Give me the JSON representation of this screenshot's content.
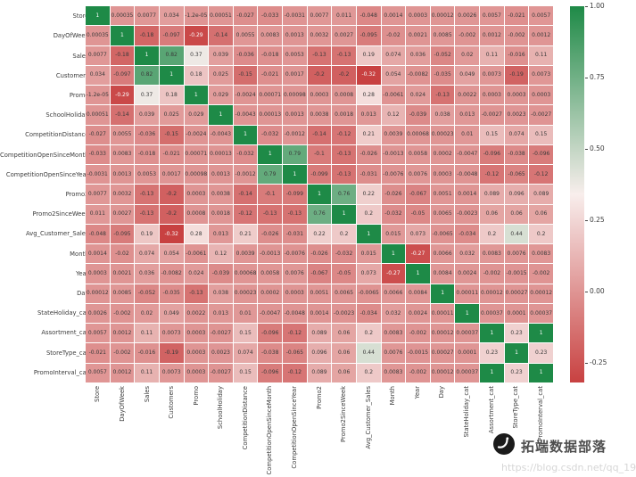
{
  "watermark": {
    "brand": "拓端数据部落",
    "url": "https://blog.csdn.net/qq_19000291"
  },
  "chart_data": {
    "type": "heatmap",
    "title": "",
    "subtitle": "",
    "annotation_format": ".2g",
    "legend_position": "right",
    "grid": false,
    "labels": [
      "Store",
      "DayOfWeek",
      "Sales",
      "Customers",
      "Promo",
      "SchoolHoliday",
      "CompetitionDistance",
      "CompetitionOpenSinceMonth",
      "CompetitionOpenSinceYear",
      "Promo2",
      "Promo2SinceWeek",
      "Avg_Customer_Sales",
      "Month",
      "Year",
      "Day",
      "StateHoliday_cat",
      "Assortment_cat",
      "StoreType_cat",
      "PromoInterval_cat"
    ],
    "matrix": [
      [
        1,
        0.00035,
        0.0077,
        0.034,
        -1.2e-05,
        0.00051,
        -0.027,
        -0.033,
        -0.0031,
        0.0077,
        0.011,
        -0.048,
        0.0014,
        0.0003,
        0.00012,
        0.0026,
        0.0057,
        -0.021,
        0.0057
      ],
      [
        0.00035,
        1,
        -0.18,
        -0.097,
        -0.29,
        -0.14,
        0.0055,
        0.0083,
        0.0013,
        0.0032,
        0.0027,
        -0.095,
        -0.02,
        0.0021,
        0.0085,
        -0.002,
        0.0012,
        -0.002,
        0.0012
      ],
      [
        0.0077,
        -0.18,
        1,
        0.82,
        0.37,
        0.039,
        -0.036,
        -0.018,
        0.0053,
        -0.13,
        -0.13,
        0.19,
        0.074,
        0.036,
        -0.052,
        0.02,
        0.11,
        -0.016,
        0.11
      ],
      [
        0.034,
        -0.097,
        0.82,
        1,
        0.18,
        0.025,
        -0.15,
        -0.021,
        0.0017,
        -0.2,
        -0.2,
        -0.32,
        0.054,
        -0.0082,
        -0.035,
        0.049,
        0.0073,
        -0.19,
        0.0073
      ],
      [
        -1.2e-05,
        -0.29,
        0.37,
        0.18,
        1,
        0.029,
        -0.0024,
        0.00071,
        0.00098,
        0.0003,
        0.0008,
        0.28,
        -0.0061,
        0.024,
        -0.13,
        0.0022,
        0.0003,
        0.0003,
        0.0003
      ],
      [
        0.00051,
        -0.14,
        0.039,
        0.025,
        0.029,
        1,
        -0.0043,
        0.00013,
        0.0013,
        0.0038,
        0.0018,
        0.013,
        0.12,
        -0.039,
        0.038,
        0.013,
        -0.0027,
        0.0023,
        -0.0027
      ],
      [
        -0.027,
        0.0055,
        -0.036,
        -0.15,
        -0.0024,
        -0.0043,
        1,
        -0.032,
        -0.0012,
        -0.14,
        -0.12,
        0.21,
        0.0039,
        0.00068,
        0.00023,
        0.01,
        0.15,
        0.074,
        0.15
      ],
      [
        -0.033,
        0.0083,
        -0.018,
        -0.021,
        0.00071,
        0.00013,
        -0.032,
        1,
        0.79,
        -0.1,
        -0.13,
        -0.026,
        -0.0013,
        0.0058,
        0.0002,
        -0.0047,
        -0.096,
        -0.038,
        -0.096
      ],
      [
        -0.0031,
        0.0013,
        0.0053,
        0.0017,
        0.00098,
        0.0013,
        -0.0012,
        0.79,
        1,
        -0.099,
        -0.13,
        -0.031,
        -0.0076,
        0.0076,
        0.0003,
        -0.0048,
        -0.12,
        -0.065,
        -0.12
      ],
      [
        0.0077,
        0.0032,
        -0.13,
        -0.2,
        0.0003,
        0.0038,
        -0.14,
        -0.1,
        -0.099,
        1,
        0.76,
        0.22,
        -0.026,
        -0.067,
        0.0051,
        0.0014,
        0.089,
        0.096,
        0.089
      ],
      [
        0.011,
        0.0027,
        -0.13,
        -0.2,
        0.0008,
        0.0018,
        -0.12,
        -0.13,
        -0.13,
        0.76,
        1,
        0.2,
        -0.032,
        -0.05,
        0.0065,
        -0.0023,
        0.06,
        0.06,
        0.06
      ],
      [
        -0.048,
        -0.095,
        0.19,
        -0.32,
        0.28,
        0.013,
        0.21,
        -0.026,
        -0.031,
        0.22,
        0.2,
        1,
        0.015,
        0.073,
        -0.0065,
        -0.034,
        0.2,
        0.44,
        0.2
      ],
      [
        0.0014,
        -0.02,
        0.074,
        0.054,
        -0.0061,
        0.12,
        0.0039,
        -0.0013,
        -0.0076,
        -0.026,
        -0.032,
        0.015,
        1,
        -0.27,
        0.0066,
        0.032,
        0.0083,
        0.0076,
        0.0083
      ],
      [
        0.0003,
        0.0021,
        0.036,
        -0.0082,
        0.024,
        -0.039,
        0.00068,
        0.0058,
        0.0076,
        -0.067,
        -0.05,
        0.073,
        -0.27,
        1,
        0.0084,
        0.0024,
        -0.002,
        -0.0015,
        -0.002
      ],
      [
        0.00012,
        0.0085,
        -0.052,
        -0.035,
        -0.13,
        0.038,
        0.00023,
        0.0002,
        0.0003,
        0.0051,
        0.0065,
        -0.0065,
        0.0066,
        0.0084,
        1,
        0.00011,
        0.00012,
        0.00027,
        0.00012
      ],
      [
        0.0026,
        -0.002,
        0.02,
        0.049,
        0.0022,
        0.013,
        0.01,
        -0.0047,
        -0.0048,
        0.0014,
        -0.0023,
        -0.034,
        0.032,
        0.0024,
        0.00011,
        1,
        0.00037,
        0.0001,
        0.00037
      ],
      [
        0.0057,
        0.0012,
        0.11,
        0.0073,
        0.0003,
        -0.0027,
        0.15,
        -0.096,
        -0.12,
        0.089,
        0.06,
        0.2,
        0.0083,
        -0.002,
        0.00012,
        0.00037,
        1,
        0.23,
        1
      ],
      [
        -0.021,
        -0.002,
        -0.016,
        -0.19,
        0.0003,
        0.0023,
        0.074,
        -0.038,
        -0.065,
        0.096,
        0.06,
        0.44,
        0.0076,
        -0.0015,
        0.00027,
        0.0001,
        0.23,
        1,
        0.23
      ],
      [
        0.0057,
        0.0012,
        0.11,
        0.0073,
        0.0003,
        -0.0027,
        0.15,
        -0.096,
        -0.12,
        0.089,
        0.06,
        0.2,
        0.0083,
        -0.002,
        0.00012,
        0.00037,
        1,
        0.23,
        1
      ]
    ],
    "colorbar": {
      "vmin": -0.32,
      "vmax": 1.0,
      "ticks": [
        {
          "label": "1.00",
          "value": 1.0
        },
        {
          "label": "0.75",
          "value": 0.75
        },
        {
          "label": "0.50",
          "value": 0.5
        },
        {
          "label": "0.25",
          "value": 0.25
        },
        {
          "label": "0.00",
          "value": 0.0
        },
        {
          "label": "-0.25",
          "value": -0.25
        }
      ]
    },
    "colors": {
      "positive_max": "#1e8a47",
      "midpoint": "#f8eeec",
      "negative_min": "#c84141"
    }
  }
}
